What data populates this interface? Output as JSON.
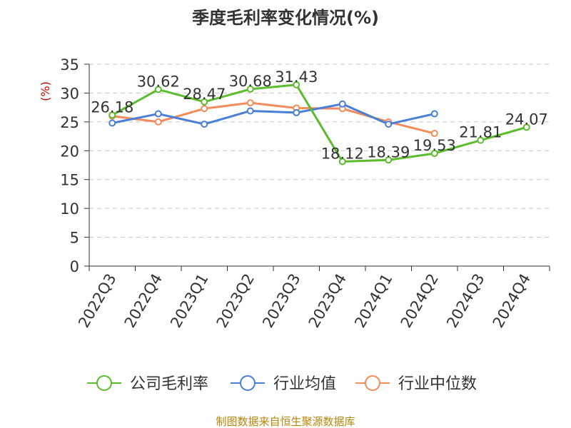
{
  "chart_data": {
    "type": "line",
    "title": "季度毛利率变化情况(%)",
    "ylabel": "(%)",
    "xlabel": "",
    "ylim": [
      0,
      35
    ],
    "yticks": [
      0,
      5,
      10,
      15,
      20,
      25,
      30,
      35
    ],
    "grid": true,
    "legend_position": "bottom",
    "categories": [
      "2022Q3",
      "2022Q4",
      "2023Q1",
      "2023Q2",
      "2023Q3",
      "2023Q4",
      "2024Q1",
      "2024Q2",
      "2024Q3",
      "2024Q4"
    ],
    "series": [
      {
        "name": "公司毛利率",
        "color": "#5bbd2b",
        "values": [
          26.18,
          30.62,
          28.47,
          30.68,
          31.43,
          18.12,
          18.39,
          19.53,
          21.81,
          24.07
        ],
        "labels": [
          "26.18",
          "30.62",
          "28.47",
          "30.68",
          "31.43",
          "18.12",
          "18.39",
          "19.53",
          "21.81",
          "24.07"
        ]
      },
      {
        "name": "行业均值",
        "color": "#4a7fd8",
        "values": [
          24.8,
          26.4,
          24.6,
          26.9,
          26.6,
          28.1,
          24.6,
          26.4,
          null,
          null
        ]
      },
      {
        "name": "行业中位数",
        "color": "#f28c5a",
        "values": [
          26.0,
          25.0,
          27.3,
          28.3,
          27.4,
          27.3,
          25.0,
          23.0,
          null,
          null
        ]
      }
    ],
    "source": "制图数据来自恒生聚源数据库"
  }
}
